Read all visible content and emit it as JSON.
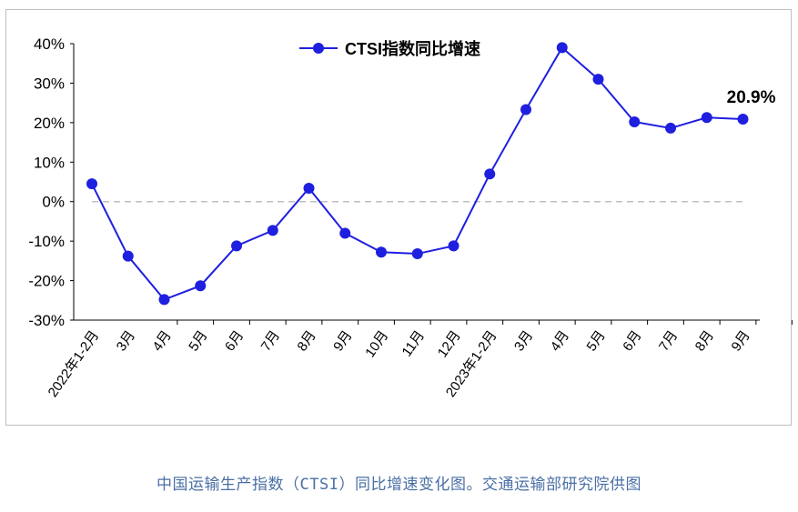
{
  "chart_data": {
    "type": "line",
    "legend": {
      "label": "CTSI指数同比增速",
      "placement": "top-center"
    },
    "categories": [
      "2022年1-2月",
      "3月",
      "4月",
      "5月",
      "6月",
      "7月",
      "8月",
      "9月",
      "10月",
      "11月",
      "12月",
      "2023年1-2月",
      "3月",
      "4月",
      "5月",
      "6月",
      "7月",
      "8月",
      "9月"
    ],
    "series": [
      {
        "name": "CTSI指数同比增速",
        "values": [
          4.5,
          -13.8,
          -24.8,
          -21.3,
          -11.2,
          -7.3,
          3.4,
          -8.0,
          -12.8,
          -13.2,
          -11.2,
          7.0,
          23.3,
          39.0,
          31.0,
          20.2,
          18.6,
          21.3,
          20.9
        ]
      }
    ],
    "y_ticks": [
      "40%",
      "30%",
      "20%",
      "10%",
      "0%",
      "-10%",
      "-20%",
      "-30%"
    ],
    "ylim": [
      -30,
      40
    ],
    "zero_line": "dashed",
    "end_label": "20.9%",
    "line_color": "#1f1fe0",
    "zero_line_color": "#bfbfbf"
  },
  "caption": "中国运输生产指数（CTSI）同比增速变化图。交通运输部研究院供图"
}
